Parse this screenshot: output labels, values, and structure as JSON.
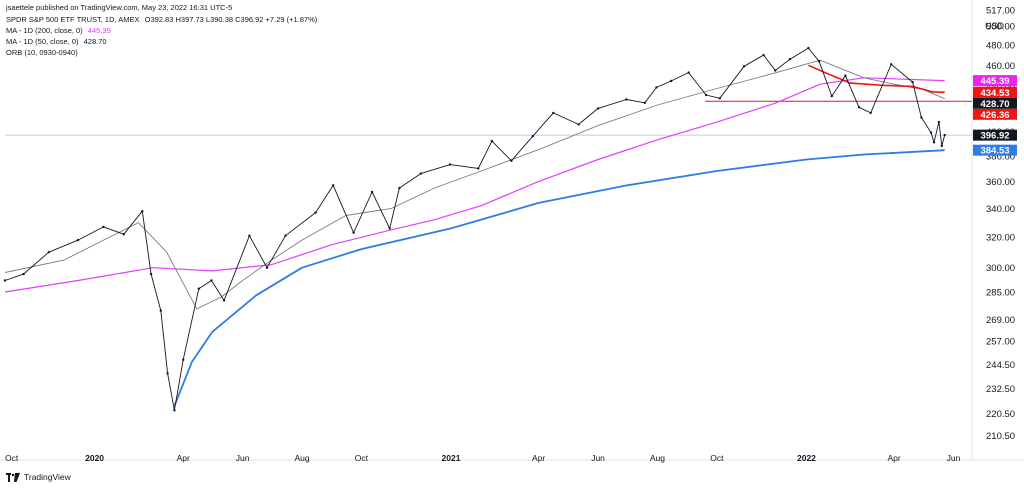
{
  "header": {
    "published": "jsaettele published on TradingView.com, May 23, 2022 16:31 UTC-5",
    "symbol_line": "SPDR S&P 500 ETF TRUST, 1D, AMEX",
    "ohlc_line": "O392.83 H397.73 L390.38 C396.92 +7.29 (+1.87%)",
    "ind1_label": "MA - 1D (200, close, 0)",
    "ind1_value": "445.39",
    "ind2_label": "MA - 1D (50, close, 0)",
    "ind2_value": "428.70",
    "ind3_label": "ORB (10, 0930-0940)"
  },
  "axis_currency": "USD",
  "footer": {
    "brand": "TradingView"
  },
  "colors": {
    "price": "#131722",
    "ma200": "#e040fb",
    "ma50": "#787b86",
    "ma400": "#2e7de6",
    "ma_red": "#f01515",
    "hline": "#f01515",
    "last_price_bg": "#131722",
    "ma200_bg": "#f020f0",
    "red_bg": "#f01515",
    "blue_bg": "#2e7de6"
  },
  "chart_data": {
    "type": "line",
    "scale": "log",
    "ylim": [
      205,
      517
    ],
    "y_ticks": [
      210.5,
      220.5,
      232.5,
      244.5,
      257.0,
      269.0,
      285.0,
      300.0,
      320.0,
      340.0,
      360.0,
      380.0,
      400.0,
      420.0,
      440.0,
      460.0,
      480.0,
      500.0,
      517.0
    ],
    "y_tick_labels": [
      "210.50",
      "220.50",
      "232.50",
      "244.50",
      "257.00",
      "269.00",
      "285.00",
      "300.00",
      "320.00",
      "340.00",
      "360.00",
      "380.00",
      "400.00",
      "420.00",
      "440.00",
      "460.00",
      "480.00",
      "500.00",
      "517.00"
    ],
    "x_range": [
      "2019-10-01",
      "2022-06-20"
    ],
    "x_ticks": [
      {
        "date": "2019-10-01",
        "label": "Oct",
        "bold": false
      },
      {
        "date": "2020-01-01",
        "label": "2020",
        "bold": true
      },
      {
        "date": "2020-04-01",
        "label": "Apr",
        "bold": false
      },
      {
        "date": "2020-06-01",
        "label": "Jun",
        "bold": false
      },
      {
        "date": "2020-08-01",
        "label": "Aug",
        "bold": false
      },
      {
        "date": "2020-10-01",
        "label": "Oct",
        "bold": false
      },
      {
        "date": "2021-01-01",
        "label": "2021",
        "bold": true
      },
      {
        "date": "2021-04-01",
        "label": "Apr",
        "bold": false
      },
      {
        "date": "2021-06-01",
        "label": "Jun",
        "bold": false
      },
      {
        "date": "2021-08-01",
        "label": "Aug",
        "bold": false
      },
      {
        "date": "2021-10-01",
        "label": "Oct",
        "bold": false
      },
      {
        "date": "2022-01-01",
        "label": "2022",
        "bold": true
      },
      {
        "date": "2022-04-01",
        "label": "Apr",
        "bold": false
      },
      {
        "date": "2022-06-01",
        "label": "Jun",
        "bold": false
      }
    ],
    "series": [
      {
        "key": "price",
        "points": [
          [
            "2019-10-01",
            292
          ],
          [
            "2019-10-20",
            296
          ],
          [
            "2019-11-15",
            310
          ],
          [
            "2019-12-15",
            318
          ],
          [
            "2020-01-10",
            327
          ],
          [
            "2020-01-31",
            322
          ],
          [
            "2020-02-19",
            338
          ],
          [
            "2020-02-28",
            296
          ],
          [
            "2020-03-09",
            274
          ],
          [
            "2020-03-16",
            240
          ],
          [
            "2020-03-23",
            222
          ],
          [
            "2020-04-01",
            247
          ],
          [
            "2020-04-17",
            287
          ],
          [
            "2020-04-30",
            292
          ],
          [
            "2020-05-13",
            280
          ],
          [
            "2020-06-08",
            321
          ],
          [
            "2020-06-26",
            300
          ],
          [
            "2020-07-15",
            321
          ],
          [
            "2020-08-15",
            337
          ],
          [
            "2020-09-02",
            357
          ],
          [
            "2020-09-23",
            323
          ],
          [
            "2020-10-12",
            352
          ],
          [
            "2020-10-30",
            326
          ],
          [
            "2020-11-09",
            355
          ],
          [
            "2020-12-01",
            366
          ],
          [
            "2020-12-31",
            373
          ],
          [
            "2021-01-29",
            370
          ],
          [
            "2021-02-12",
            392
          ],
          [
            "2021-03-04",
            376
          ],
          [
            "2021-03-26",
            396
          ],
          [
            "2021-04-16",
            416
          ],
          [
            "2021-05-12",
            406
          ],
          [
            "2021-06-01",
            420
          ],
          [
            "2021-06-30",
            428
          ],
          [
            "2021-07-19",
            425
          ],
          [
            "2021-07-31",
            439
          ],
          [
            "2021-08-15",
            445
          ],
          [
            "2021-09-02",
            453
          ],
          [
            "2021-09-20",
            432
          ],
          [
            "2021-10-04",
            429
          ],
          [
            "2021-10-29",
            459
          ],
          [
            "2021-11-18",
            470
          ],
          [
            "2021-11-30",
            455
          ],
          [
            "2021-12-15",
            466
          ],
          [
            "2022-01-03",
            477
          ],
          [
            "2022-01-14",
            464
          ],
          [
            "2022-01-27",
            431
          ],
          [
            "2022-02-10",
            450
          ],
          [
            "2022-02-24",
            421
          ],
          [
            "2022-03-08",
            416
          ],
          [
            "2022-03-29",
            461
          ],
          [
            "2022-04-20",
            444
          ],
          [
            "2022-04-29",
            412
          ],
          [
            "2022-05-09",
            399
          ],
          [
            "2022-05-12",
            391
          ],
          [
            "2022-05-17",
            408
          ],
          [
            "2022-05-20",
            388
          ],
          [
            "2022-05-23",
            396.92
          ]
        ]
      },
      {
        "key": "ma50",
        "points": [
          [
            "2019-10-01",
            297
          ],
          [
            "2019-12-01",
            305
          ],
          [
            "2020-01-01",
            315
          ],
          [
            "2020-02-15",
            330
          ],
          [
            "2020-03-15",
            310
          ],
          [
            "2020-04-15",
            275
          ],
          [
            "2020-05-10",
            282
          ],
          [
            "2020-06-01",
            292
          ],
          [
            "2020-07-01",
            305
          ],
          [
            "2020-08-01",
            318
          ],
          [
            "2020-09-15",
            335
          ],
          [
            "2020-11-01",
            340
          ],
          [
            "2020-12-15",
            355
          ],
          [
            "2021-02-01",
            368
          ],
          [
            "2021-04-01",
            385
          ],
          [
            "2021-06-01",
            405
          ],
          [
            "2021-08-01",
            423
          ],
          [
            "2021-10-01",
            438
          ],
          [
            "2021-12-01",
            453
          ],
          [
            "2022-01-15",
            465
          ],
          [
            "2022-03-01",
            448
          ],
          [
            "2022-04-01",
            442
          ],
          [
            "2022-05-01",
            437
          ],
          [
            "2022-05-23",
            428.7
          ]
        ]
      },
      {
        "key": "ma200",
        "points": [
          [
            "2019-10-01",
            285
          ],
          [
            "2019-12-15",
            292
          ],
          [
            "2020-03-01",
            300
          ],
          [
            "2020-05-01",
            298
          ],
          [
            "2020-07-01",
            302
          ],
          [
            "2020-09-01",
            315
          ],
          [
            "2020-11-01",
            325
          ],
          [
            "2020-12-15",
            332
          ],
          [
            "2021-02-01",
            342
          ],
          [
            "2021-04-01",
            360
          ],
          [
            "2021-06-01",
            377
          ],
          [
            "2021-08-01",
            393
          ],
          [
            "2021-10-01",
            408
          ],
          [
            "2021-12-01",
            425
          ],
          [
            "2022-01-15",
            442
          ],
          [
            "2022-03-01",
            448
          ],
          [
            "2022-05-23",
            445.39
          ]
        ]
      },
      {
        "key": "ma_red",
        "points": [
          [
            "2022-01-03",
            460
          ],
          [
            "2022-01-20",
            453
          ],
          [
            "2022-02-15",
            443
          ],
          [
            "2022-03-20",
            441
          ],
          [
            "2022-04-20",
            440
          ],
          [
            "2022-05-10",
            435
          ],
          [
            "2022-05-23",
            434.53
          ]
        ]
      },
      {
        "key": "ma400",
        "points": [
          [
            "2020-03-23",
            224
          ],
          [
            "2020-04-10",
            246
          ],
          [
            "2020-05-01",
            262
          ],
          [
            "2020-06-15",
            283
          ],
          [
            "2020-08-01",
            300
          ],
          [
            "2020-10-01",
            312
          ],
          [
            "2021-01-01",
            326
          ],
          [
            "2021-04-01",
            344
          ],
          [
            "2021-07-01",
            357
          ],
          [
            "2021-10-01",
            368
          ],
          [
            "2022-01-01",
            377
          ],
          [
            "2022-03-01",
            381
          ],
          [
            "2022-05-23",
            384.53
          ]
        ]
      }
    ],
    "hline": 426.36,
    "price_labels": [
      {
        "value": 445.39,
        "text": "445.39",
        "color": "#f020f0",
        "text_color": "#ffffff"
      },
      {
        "value": 434.53,
        "text": "434.53",
        "color": "#f01515",
        "text_color": "#ffffff"
      },
      {
        "value": 428.7,
        "text": "428.70",
        "color": "#131722",
        "text_color": "#ffffff"
      },
      {
        "value": 426.36,
        "text": "426.36",
        "color": "#f01515",
        "text_color": "#ffffff"
      },
      {
        "value": 396.92,
        "text": "396.92",
        "color": "#131722",
        "text_color": "#ffffff"
      },
      {
        "value": 384.53,
        "text": "384.53",
        "color": "#2e7de6",
        "text_color": "#ffffff"
      }
    ]
  }
}
